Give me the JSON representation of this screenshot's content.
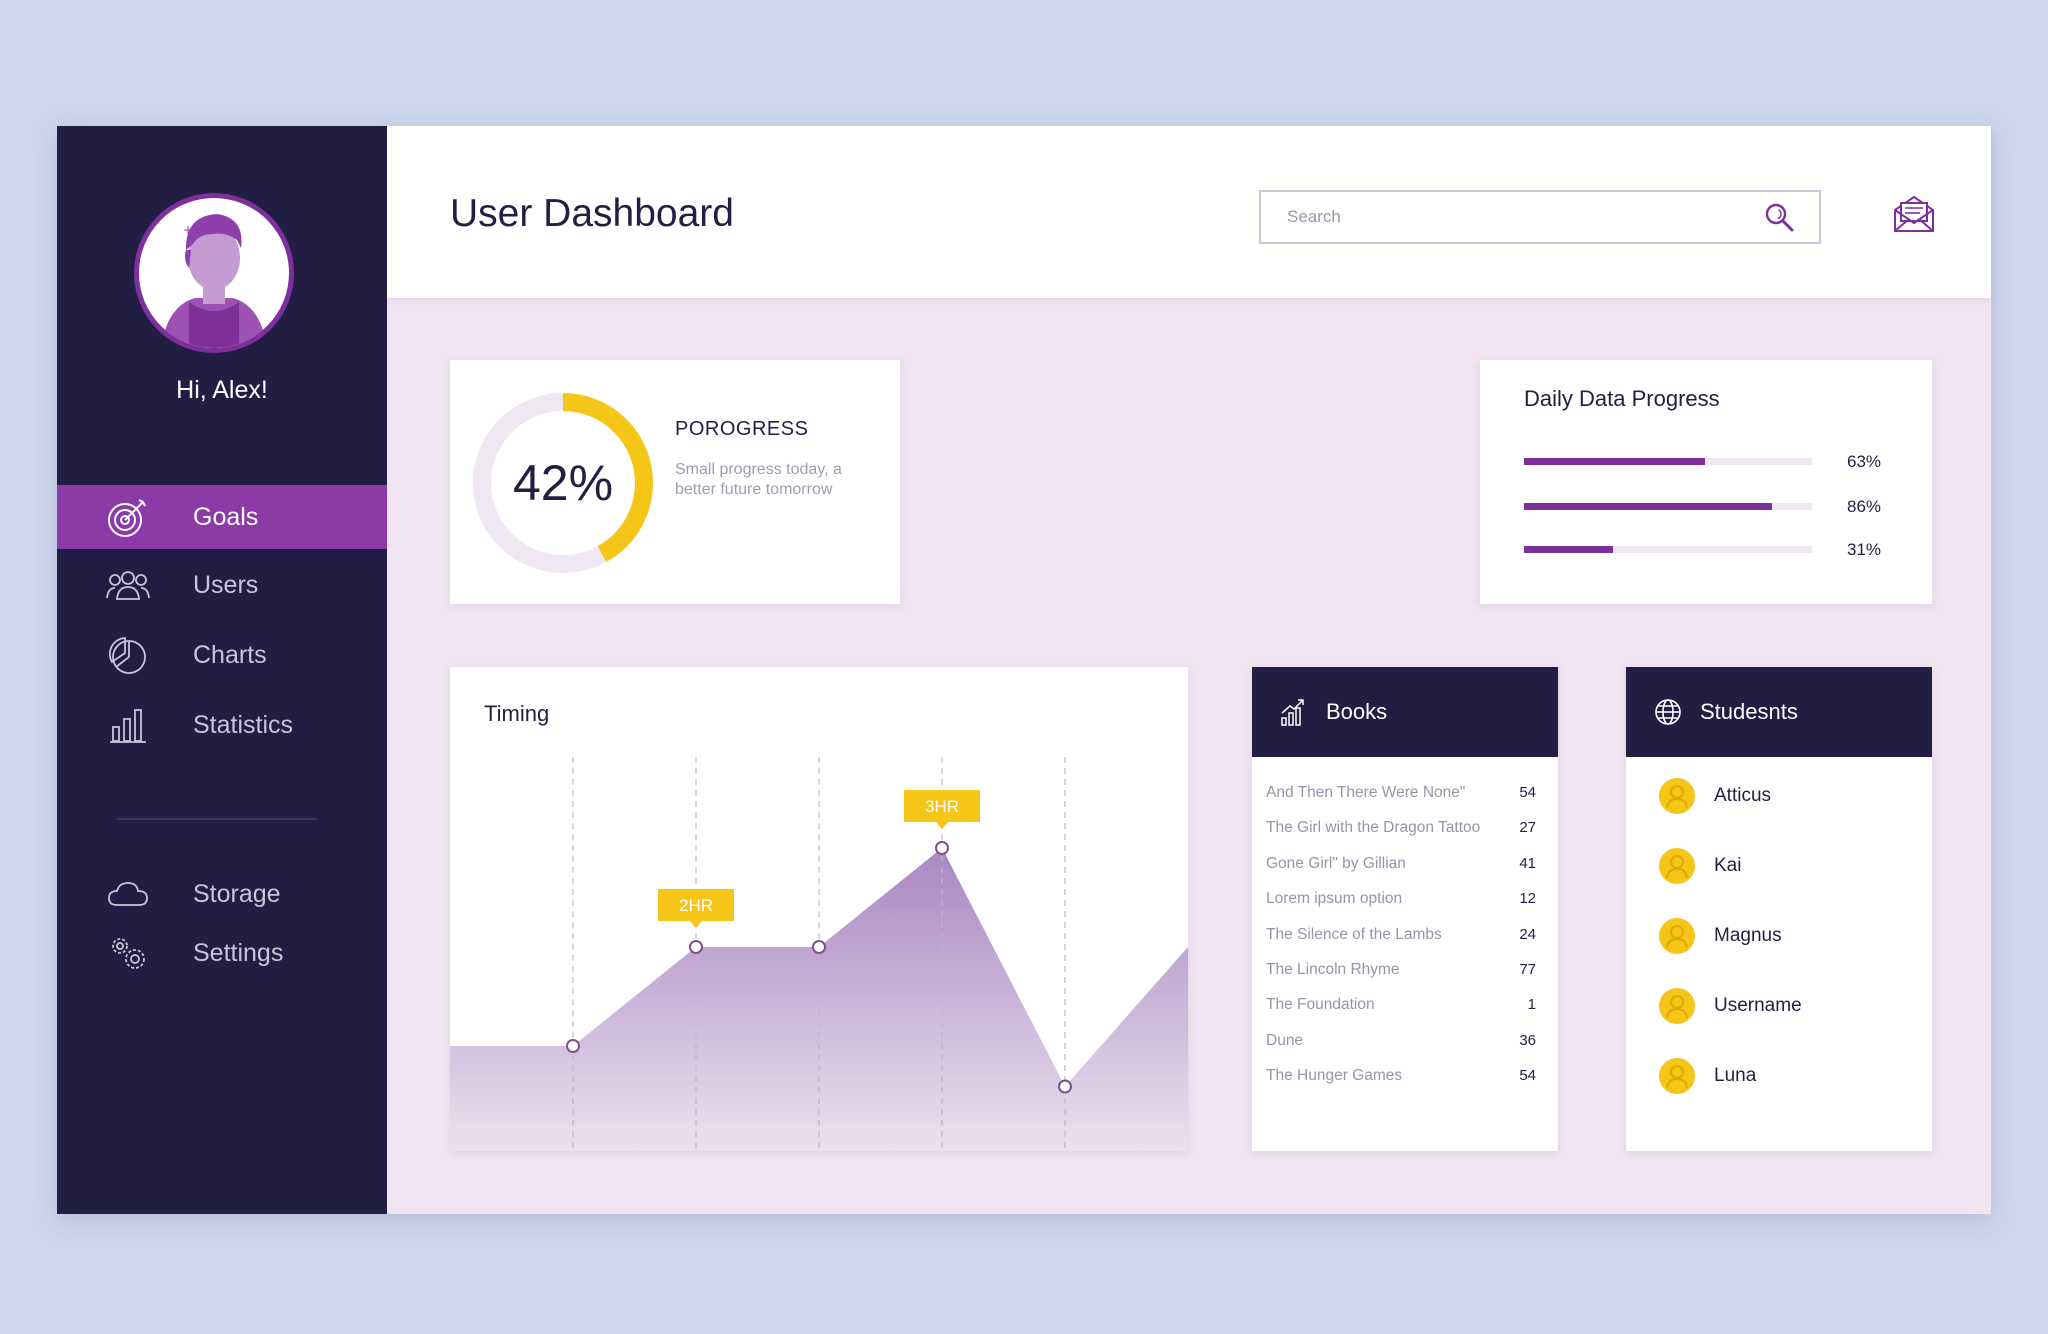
{
  "window": {
    "title": "User Dashboard"
  },
  "sidebar": {
    "greeting": "Hi, Alex!",
    "items": [
      {
        "label": "Goals",
        "icon": "target-icon",
        "active": true
      },
      {
        "label": "Users",
        "icon": "users-icon",
        "active": false
      },
      {
        "label": "Charts",
        "icon": "pie-chart-icon",
        "active": false
      },
      {
        "label": "Statistics",
        "icon": "bar-chart-icon",
        "active": false
      }
    ],
    "secondary_items": [
      {
        "label": "Storage",
        "icon": "cloud-icon"
      },
      {
        "label": "Settings",
        "icon": "gears-icon"
      }
    ]
  },
  "header": {
    "title": "User Dashboard",
    "search_placeholder": "Search"
  },
  "progress": {
    "value": 42,
    "value_label": "42%",
    "title": "POROGRESS",
    "subtitle": "Small progress today, a better future tomorrow"
  },
  "daily": {
    "title": "Daily Data Progress",
    "bars": [
      {
        "value": 63,
        "label": "63%"
      },
      {
        "value": 86,
        "label": "86%"
      },
      {
        "value": 31,
        "label": "31%"
      }
    ]
  },
  "chart_data": {
    "type": "area",
    "title": "Timing",
    "x": [
      0,
      1,
      2,
      3,
      4,
      5,
      6
    ],
    "y": [
      0.9,
      0.9,
      2.0,
      2.0,
      3.1,
      0.45,
      2.0
    ],
    "ylim": [
      0,
      4
    ],
    "annotations": [
      {
        "x": 2,
        "label": "2HR"
      },
      {
        "x": 4,
        "label": "3HR"
      }
    ],
    "grid": "vertical dashed",
    "color": "#b59ac9"
  },
  "books": {
    "title": "Books",
    "items": [
      {
        "title": "And Then There Were None\"",
        "count": "54"
      },
      {
        "title": "The Girl with the Dragon Tattoo",
        "count": "27"
      },
      {
        "title": "Gone Girl\" by Gillian",
        "count": "41"
      },
      {
        "title": "Lorem ipsum option",
        "count": "12"
      },
      {
        "title": "The Silence of the Lambs",
        "count": "24"
      },
      {
        "title": "The Lincoln Rhyme",
        "count": "77"
      },
      {
        "title": "The Foundation",
        "count": "1"
      },
      {
        "title": "Dune",
        "count": "36"
      },
      {
        "title": "The Hunger Games",
        "count": "54"
      }
    ]
  },
  "students": {
    "title": "Studesnts",
    "items": [
      "Atticus",
      "Kai",
      "Magnus",
      "Username",
      "Luna"
    ]
  },
  "colors": {
    "sidebar": "#221d42",
    "accent": "#8b3aa8",
    "highlight": "#f5c518",
    "background": "#f0e4f0"
  }
}
